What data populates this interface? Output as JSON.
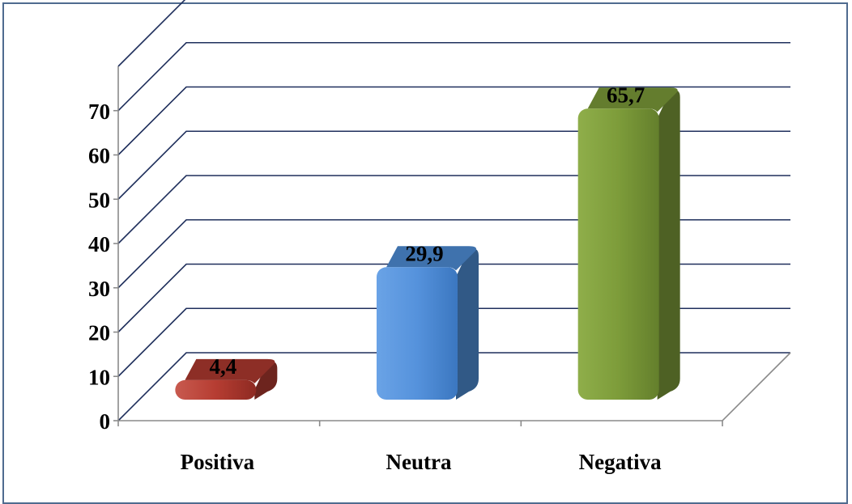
{
  "chart_data": {
    "type": "bar",
    "style": "3d",
    "title": "",
    "xlabel": "",
    "ylabel": "",
    "categories": [
      "Positiva",
      "Neutra",
      "Negativa"
    ],
    "values": [
      4.4,
      29.9,
      65.7
    ],
    "data_labels": [
      "4,4",
      "29,9",
      "65,7"
    ],
    "bar_colors": [
      "#b03a30",
      "#4f8fd8",
      "#7d9c3a"
    ],
    "ylim": [
      0,
      80
    ],
    "yticks": [
      0,
      10,
      20,
      30,
      40,
      50,
      60,
      70
    ],
    "grid": true,
    "gridline_color": "#1f2f5c",
    "legend": "none"
  }
}
